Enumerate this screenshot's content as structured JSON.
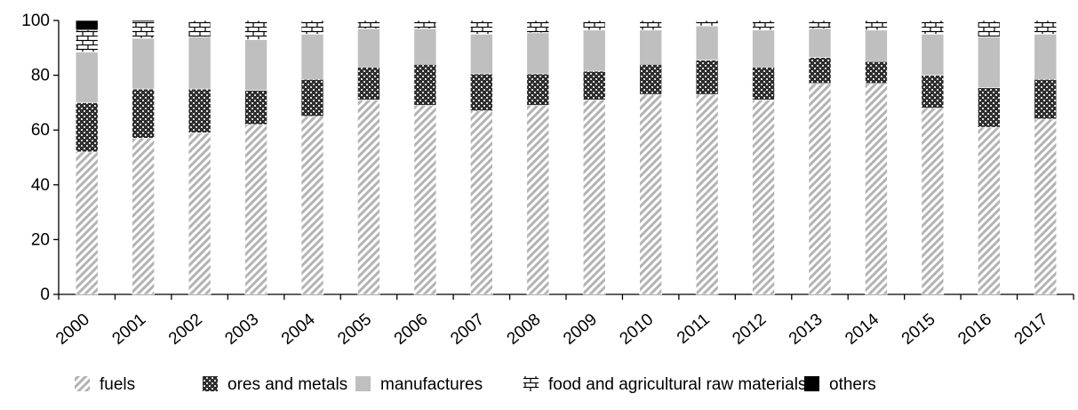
{
  "chart_data": {
    "type": "bar",
    "stacked": true,
    "categories": [
      "2000",
      "2001",
      "2002",
      "2003",
      "2004",
      "2005",
      "2006",
      "2007",
      "2008",
      "2009",
      "2010",
      "2011",
      "2012",
      "2013",
      "2014",
      "2015",
      "2016",
      "2017"
    ],
    "series": [
      {
        "name": "fuels",
        "pattern": "diagonal-hatch",
        "color": "#a6a6a6",
        "values": [
          52,
          57,
          59,
          62,
          65,
          71,
          69,
          67,
          69,
          71,
          73,
          73,
          71,
          77,
          77,
          68,
          61,
          64
        ]
      },
      {
        "name": "ores and metals",
        "pattern": "crosshatch-dark",
        "color": "#404040",
        "values": [
          18,
          18,
          16,
          12.5,
          13.5,
          12,
          15,
          13.5,
          11.5,
          10.5,
          11,
          12.5,
          12,
          9.5,
          8,
          12,
          14.5,
          14.5
        ]
      },
      {
        "name": "manufactures",
        "pattern": "solid",
        "color": "#bfbfbf",
        "values": [
          18.5,
          18.5,
          19,
          18.5,
          16.5,
          14,
          13,
          14.5,
          15,
          15,
          12.5,
          12.5,
          13.5,
          10.5,
          11.5,
          15,
          18.5,
          16.5
        ]
      },
      {
        "name": "food and agricultural raw materials",
        "pattern": "brick",
        "color": "#000000",
        "values": [
          8,
          6,
          6,
          7,
          5,
          3,
          3,
          5,
          4.5,
          3.5,
          3.5,
          2,
          3.5,
          3,
          3.5,
          5,
          6,
          5
        ]
      },
      {
        "name": "others",
        "pattern": "solid",
        "color": "#000000",
        "values": [
          3.5,
          0.5,
          0,
          0,
          0,
          0,
          0,
          0,
          0,
          0,
          0,
          0,
          0,
          0,
          0,
          0,
          0,
          0
        ]
      }
    ],
    "y_ticks": [
      "0",
      "20",
      "40",
      "60",
      "80",
      "100"
    ],
    "ylim": [
      0,
      100
    ],
    "grid": false,
    "legend_position": "bottom"
  }
}
